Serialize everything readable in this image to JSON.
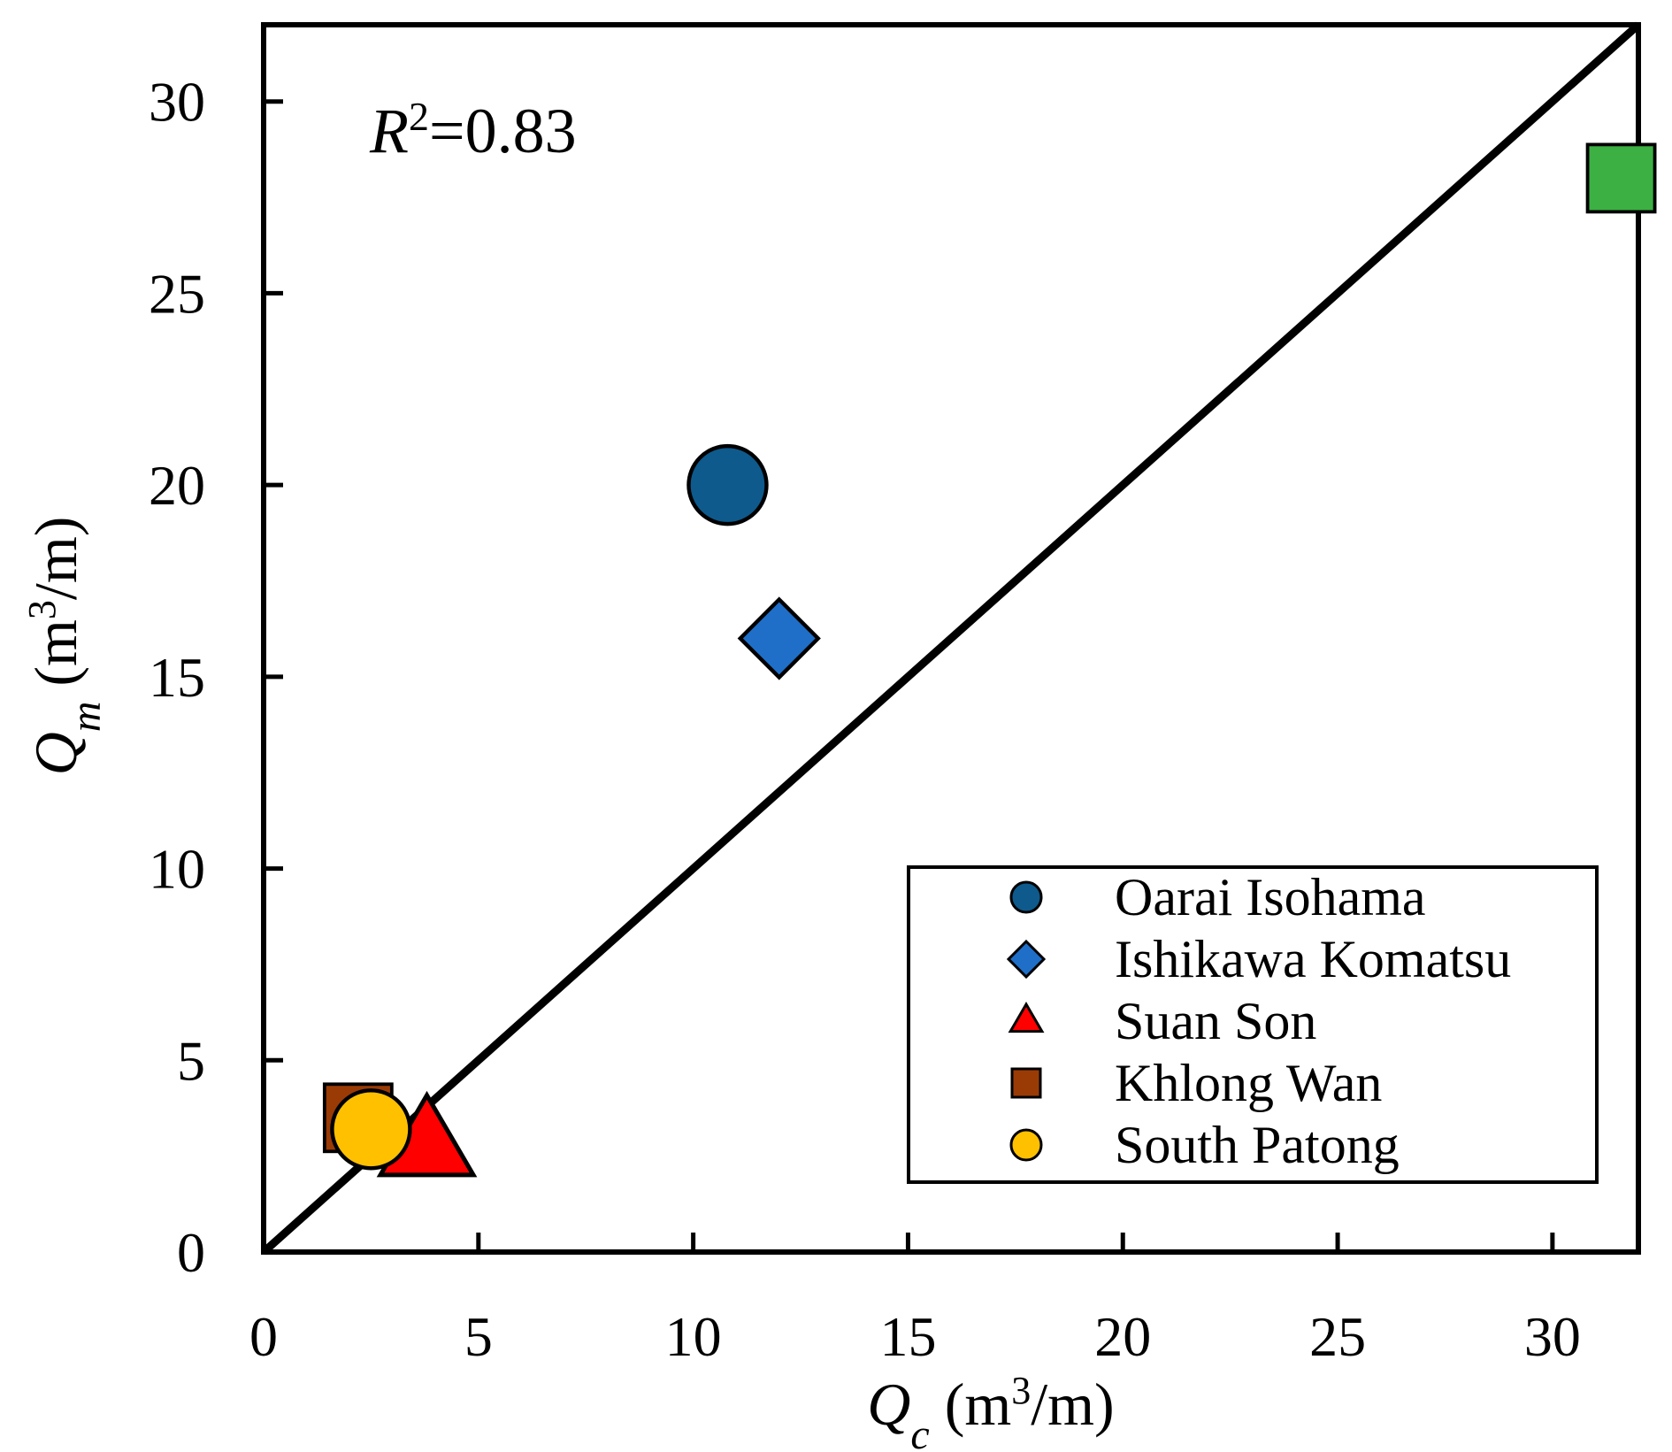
{
  "chart_data": {
    "type": "scatter",
    "title": "",
    "xlabel": {
      "symbol": "Q",
      "subscript": "c",
      "unit_pre": " (m",
      "unit_sup": "3",
      "unit_post": "/m)"
    },
    "ylabel": {
      "symbol": "Q",
      "subscript": "m",
      "unit_pre": " (m",
      "unit_sup": "3",
      "unit_post": "/m)"
    },
    "xlim": [
      0,
      32
    ],
    "ylim": [
      0,
      32
    ],
    "xticks": [
      0,
      5,
      10,
      15,
      20,
      25,
      30
    ],
    "yticks": [
      0,
      5,
      10,
      15,
      20,
      25,
      30
    ],
    "grid": false,
    "legend_position": "bottom-right",
    "reference_line": {
      "type": "1:1",
      "from": [
        0,
        0
      ],
      "to": [
        32,
        32
      ]
    },
    "annotation": {
      "symbol": "R",
      "sup": "2",
      "text": "=0.83"
    },
    "series": [
      {
        "name": "Oarai Isohama",
        "marker": "circle",
        "color": "#0e5a8c",
        "points": [
          {
            "x": 10.8,
            "y": 20.0
          }
        ]
      },
      {
        "name": "Ishikawa Komatsu",
        "marker": "diamond",
        "color": "#1f6fc8",
        "points": [
          {
            "x": 12.0,
            "y": 16.0
          }
        ]
      },
      {
        "name": "Suan Son",
        "marker": "triangle",
        "color": "#ff0000",
        "points": [
          {
            "x": 3.8,
            "y": 2.8
          }
        ]
      },
      {
        "name": "Khlong Wan",
        "marker": "square",
        "color": "#9a3b06",
        "points": [
          {
            "x": 2.2,
            "y": 3.5
          }
        ]
      },
      {
        "name": "South Patong",
        "marker": "circle",
        "color": "#ffc000",
        "points": [
          {
            "x": 2.5,
            "y": 3.2
          }
        ]
      },
      {
        "name": "",
        "marker": "square",
        "color": "#3cb043",
        "points": [
          {
            "x": 31.6,
            "y": 28.0
          }
        ]
      }
    ]
  }
}
